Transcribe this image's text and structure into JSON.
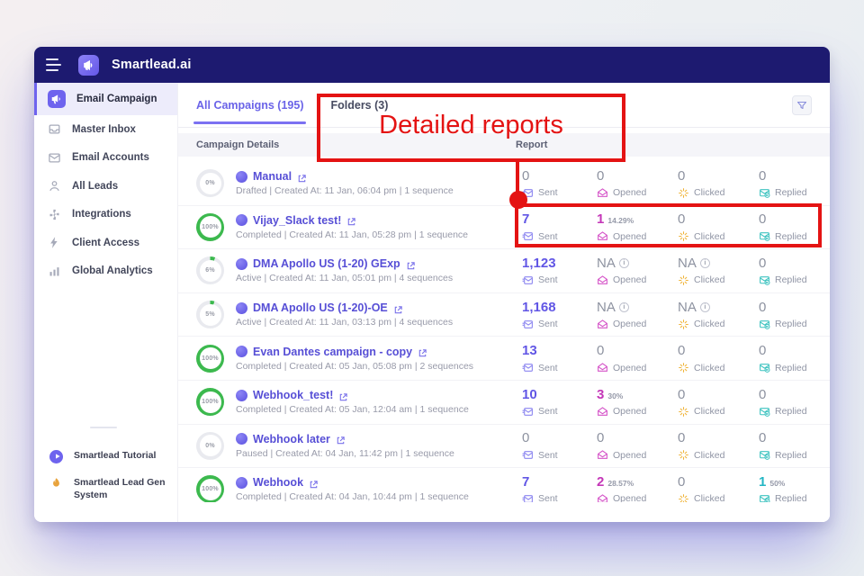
{
  "topbar": {
    "brand": "Smartlead.ai"
  },
  "sidebar": {
    "items": [
      {
        "label": "Email Campaign",
        "icon": "megaphone",
        "active": true
      },
      {
        "label": "Master Inbox",
        "icon": "inbox",
        "active": false
      },
      {
        "label": "Email Accounts",
        "icon": "envelope",
        "active": false
      },
      {
        "label": "All Leads",
        "icon": "leads",
        "active": false
      },
      {
        "label": "Integrations",
        "icon": "puzzle",
        "active": false
      },
      {
        "label": "Client Access",
        "icon": "bolt",
        "active": false
      },
      {
        "label": "Global Analytics",
        "icon": "chart",
        "active": false
      }
    ],
    "footer_items": [
      {
        "label": "Smartlead Tutorial",
        "icon": "play"
      },
      {
        "label": "Smartlead Lead Gen System",
        "icon": "flame"
      }
    ]
  },
  "tabs": [
    {
      "label": "All Campaigns (195)",
      "active": true
    },
    {
      "label": "Folders (3)",
      "active": false
    }
  ],
  "table": {
    "headers": {
      "campaign": "Campaign Details",
      "report": "Report"
    },
    "metric_labels": [
      "Sent",
      "Opened",
      "Clicked",
      "Replied"
    ],
    "rows": [
      {
        "progress_label": "0%",
        "progress_pct": 0,
        "ring_color": "#3cb94e",
        "name": "Manual",
        "status_line": "Drafted | Created At: 11 Jan, 06:04 pm | 1 sequence",
        "metrics": [
          {
            "value": "0",
            "muted": true
          },
          {
            "value": "0",
            "muted": true
          },
          {
            "value": "0",
            "muted": true
          },
          {
            "value": "0",
            "muted": true
          }
        ]
      },
      {
        "progress_label": "100%",
        "progress_pct": 100,
        "ring_color": "#3cb94e",
        "name": "Vijay_Slack test!",
        "status_line": "Completed | Created At: 11 Jan, 05:28 pm | 1 sequence",
        "metrics": [
          {
            "value": "7"
          },
          {
            "value": "1",
            "pct": "14.29%"
          },
          {
            "value": "0",
            "muted": true
          },
          {
            "value": "0",
            "muted": true
          }
        ]
      },
      {
        "progress_label": "6%",
        "progress_pct": 6,
        "ring_color": "#3cb94e",
        "name": "DMA Apollo US (1-20) GExp",
        "status_line": "Active | Created At: 11 Jan, 05:01 pm | 4 sequences",
        "metrics": [
          {
            "value": "1,123"
          },
          {
            "value": "NA",
            "muted": true,
            "info": true
          },
          {
            "value": "NA",
            "muted": true,
            "info": true
          },
          {
            "value": "0",
            "muted": true
          }
        ]
      },
      {
        "progress_label": "5%",
        "progress_pct": 5,
        "ring_color": "#3cb94e",
        "name": "DMA Apollo US (1-20)-OE",
        "status_line": "Active | Created At: 11 Jan, 03:13 pm | 4 sequences",
        "metrics": [
          {
            "value": "1,168"
          },
          {
            "value": "NA",
            "muted": true,
            "info": true
          },
          {
            "value": "NA",
            "muted": true,
            "info": true
          },
          {
            "value": "0",
            "muted": true
          }
        ]
      },
      {
        "progress_label": "100%",
        "progress_pct": 100,
        "ring_color": "#3cb94e",
        "name": "Evan Dantes campaign - copy",
        "status_line": "Completed | Created At: 05 Jan, 05:08 pm | 2 sequences",
        "metrics": [
          {
            "value": "13"
          },
          {
            "value": "0",
            "muted": true
          },
          {
            "value": "0",
            "muted": true
          },
          {
            "value": "0",
            "muted": true
          }
        ]
      },
      {
        "progress_label": "100%",
        "progress_pct": 100,
        "ring_color": "#3cb94e",
        "name": "Webhook_test!",
        "status_line": "Completed | Created At: 05 Jan, 12:04 am | 1 sequence",
        "metrics": [
          {
            "value": "10"
          },
          {
            "value": "3",
            "pct": "30%"
          },
          {
            "value": "0",
            "muted": true
          },
          {
            "value": "0",
            "muted": true
          }
        ]
      },
      {
        "progress_label": "0%",
        "progress_pct": 0,
        "ring_color": "#3cb94e",
        "name": "Webhook later",
        "status_line": "Paused | Created At: 04 Jan, 11:42 pm | 1 sequence",
        "metrics": [
          {
            "value": "0",
            "muted": true
          },
          {
            "value": "0",
            "muted": true
          },
          {
            "value": "0",
            "muted": true
          },
          {
            "value": "0",
            "muted": true
          }
        ]
      },
      {
        "progress_label": "100%",
        "progress_pct": 100,
        "ring_color": "#3cb94e",
        "name": "Webhook",
        "status_line": "Completed | Created At: 04 Jan, 10:44 pm | 1 sequence",
        "metrics": [
          {
            "value": "7"
          },
          {
            "value": "2",
            "pct": "28.57%"
          },
          {
            "value": "0",
            "muted": true
          },
          {
            "value": "1",
            "pct": "50%"
          }
        ]
      }
    ]
  },
  "annotation": {
    "label": "Detailed reports",
    "color": "#e41313"
  },
  "colors": {
    "accent": "#6e63ee",
    "topbar": "#1d1a70",
    "success_ring": "#3cb94e",
    "sent": "#6156e5",
    "opened": "#c437b8",
    "clicked": "#f0b43a",
    "replied": "#23b6c4"
  }
}
